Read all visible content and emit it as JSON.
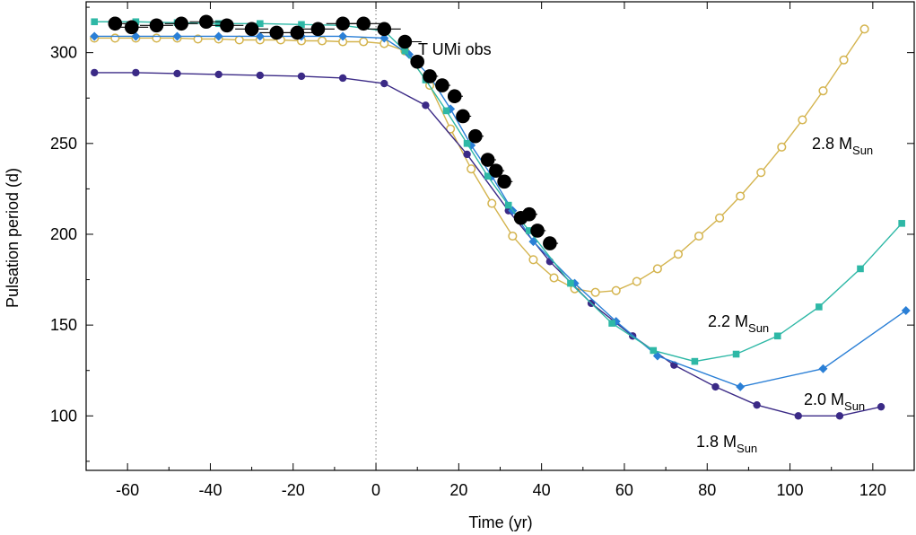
{
  "chart_data": {
    "type": "line",
    "title": "",
    "xlabel": "Time (yr)",
    "ylabel": "Pulsation period (d)",
    "xlim": [
      -70,
      130
    ],
    "ylim": [
      70,
      328
    ],
    "xticks": [
      -60,
      -40,
      -20,
      0,
      20,
      40,
      60,
      80,
      100,
      120
    ],
    "yticks": [
      100,
      150,
      200,
      250,
      300
    ],
    "vline_x": 0,
    "series": [
      {
        "name": "1.8 M_Sun",
        "label_main": "1.8 M",
        "label_sub": "Sun",
        "color": "#3b2a86",
        "marker": "circle",
        "x": [
          -68,
          -58,
          -48,
          -38,
          -28,
          -18,
          -8,
          2,
          12,
          22,
          32,
          42,
          52,
          62,
          72,
          82,
          92,
          102,
          112,
          122
        ],
        "y": [
          289,
          289,
          288.5,
          288,
          287.5,
          287,
          286,
          283,
          271,
          244,
          213,
          185,
          162,
          144,
          128,
          116,
          106,
          100,
          100,
          105
        ]
      },
      {
        "name": "2.0 M_Sun",
        "label_main": "2.0 M",
        "label_sub": "Sun",
        "color": "#2a7fd6",
        "marker": "diamond",
        "x": [
          -68,
          -58,
          -48,
          -38,
          -28,
          -18,
          -8,
          2,
          8,
          13,
          18,
          23,
          28,
          33,
          38,
          48,
          58,
          68,
          88,
          108,
          128
        ],
        "y": [
          309,
          309,
          309,
          309,
          309,
          309,
          309,
          308,
          299,
          287,
          269,
          249,
          232,
          213,
          196,
          173,
          152,
          133,
          116,
          126,
          158
        ]
      },
      {
        "name": "2.2 M_Sun",
        "label_main": "2.2 M",
        "label_sub": "Sun",
        "color": "#2eb8a6",
        "marker": "square",
        "x": [
          -68,
          -58,
          -48,
          -38,
          -28,
          -18,
          -8,
          2,
          7,
          12,
          17,
          22,
          27,
          32,
          37,
          47,
          57,
          67,
          77,
          87,
          97,
          107,
          117,
          127
        ],
        "y": [
          317,
          317,
          316.5,
          316,
          316,
          315.5,
          315,
          312,
          301,
          285,
          268,
          250,
          232,
          216,
          202,
          173,
          151,
          136,
          130,
          134,
          144,
          160,
          181,
          206
        ]
      },
      {
        "name": "2.8 M_Sun",
        "label_main": "2.8 M",
        "label_sub": "Sun",
        "color": "#d4b44e",
        "marker": "open-circle",
        "x": [
          -68,
          -63,
          -58,
          -53,
          -48,
          -43,
          -38,
          -33,
          -28,
          -23,
          -18,
          -13,
          -8,
          -3,
          2,
          7,
          13,
          18,
          23,
          28,
          33,
          38,
          43,
          48,
          53,
          58,
          63,
          68,
          73,
          78,
          83,
          88,
          93,
          98,
          103,
          108,
          113,
          118
        ],
        "y": [
          308,
          308,
          308,
          308,
          308,
          307.5,
          307.5,
          307,
          307,
          307,
          306.5,
          306.5,
          306,
          306,
          305,
          301,
          282,
          258,
          236,
          217,
          199,
          186,
          176,
          170,
          168,
          169,
          174,
          181,
          189,
          199,
          209,
          221,
          234,
          248,
          263,
          279,
          296,
          313
        ]
      }
    ],
    "observations": {
      "name": "T UMi obs",
      "color": "#000000",
      "x": [
        -63,
        -59,
        -53,
        -47,
        -41,
        -36,
        -30,
        -24,
        -19,
        -14,
        -8,
        -3,
        2,
        7,
        10,
        13,
        16,
        19,
        21,
        24,
        27,
        29,
        31,
        35,
        37,
        39,
        42
      ],
      "y": [
        316,
        314,
        315,
        316,
        317,
        315,
        313,
        311,
        311,
        313,
        316,
        316,
        313,
        306,
        295,
        287,
        282,
        276,
        265,
        254,
        241,
        235,
        229,
        209,
        211,
        202,
        195
      ],
      "err_left": [
        0,
        4,
        4,
        4,
        4,
        4,
        4,
        4,
        4,
        4,
        4,
        4,
        4,
        1,
        1,
        1,
        1,
        1,
        1,
        1,
        1,
        1,
        1,
        1,
        1,
        1,
        1
      ],
      "err_right": [
        4,
        4,
        4,
        4,
        4,
        4,
        4,
        4,
        4,
        4,
        4,
        4,
        4,
        4,
        1,
        2,
        2,
        2,
        2,
        2,
        2,
        2,
        2,
        2,
        2,
        2,
        2
      ]
    }
  }
}
